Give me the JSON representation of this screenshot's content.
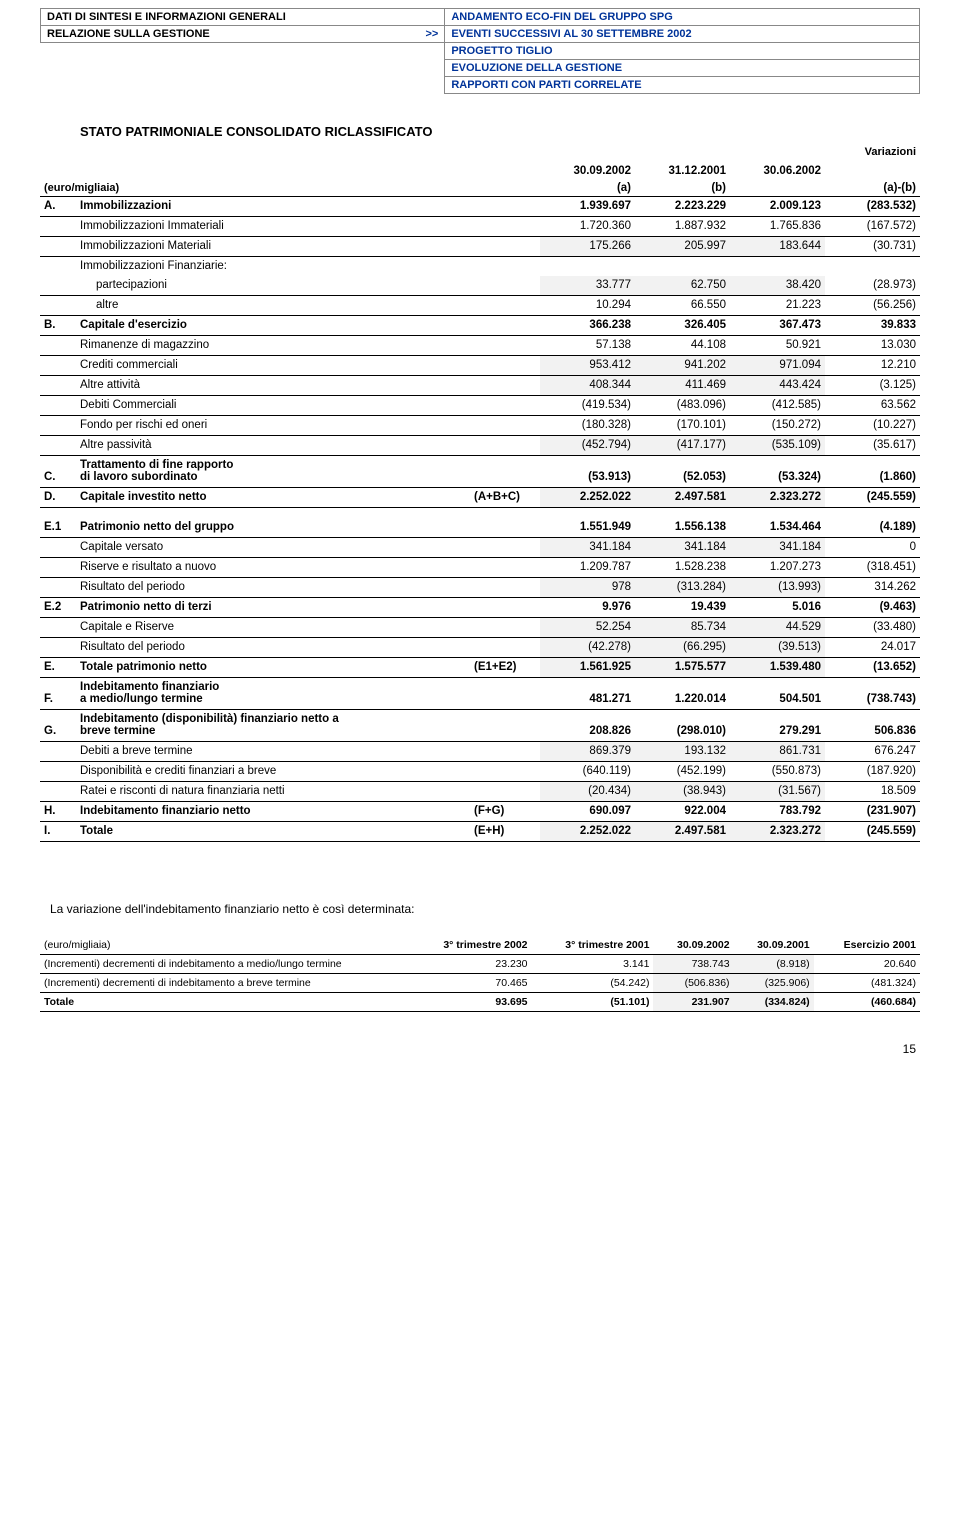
{
  "header": {
    "left1": "DATI DI SINTESI E INFORMAZIONI GENERALI",
    "left2": "RELAZIONE SULLA GESTIONE",
    "arrow": ">>",
    "right1": "ANDAMENTO ECO-FIN DEL GRUPPO SPG",
    "right2": "EVENTI SUCCESSIVI AL 30 SETTEMBRE 2002",
    "right3": "PROGETTO TIGLIO",
    "right4": "EVOLUZIONE DELLA GESTIONE",
    "right5": "RAPPORTI CON PARTI CORRELATE"
  },
  "title": "STATO PATRIMONIALE CONSOLIDATO  RICLASSIFICATO",
  "colheaders": {
    "variazioni": "Variazioni",
    "unit": "(euro/migliaia)",
    "c1": "30.09.2002",
    "c1b": "(a)",
    "c2": "31.12.2001",
    "c2b": "(b)",
    "c3": "30.06.2002",
    "c4": "(a)-(b)"
  },
  "rows": [
    {
      "letter": "A.",
      "desc": "Immobilizzazioni",
      "v": [
        "1.939.697",
        "2.223.229",
        "2.009.123",
        "(283.532)"
      ],
      "bold": true,
      "bottom": true
    },
    {
      "desc": "Immobilizzazioni Immateriali",
      "v": [
        "1.720.360",
        "1.887.932",
        "1.765.836",
        "(167.572)"
      ],
      "bottom": true
    },
    {
      "desc": "Immobilizzazioni Materiali",
      "v": [
        "175.266",
        "205.997",
        "183.644",
        "(30.731)"
      ],
      "bottom": true,
      "shaded": [
        0,
        1,
        2
      ]
    },
    {
      "desc": "Immobilizzazioni Finanziarie:"
    },
    {
      "desc": "partecipazioni",
      "indent": true,
      "v": [
        "33.777",
        "62.750",
        "38.420",
        "(28.973)"
      ],
      "bottom": true,
      "shaded": [
        0,
        1,
        2
      ]
    },
    {
      "desc": "altre",
      "indent": true,
      "v": [
        "10.294",
        "66.550",
        "21.223",
        "(56.256)"
      ],
      "bottom": true
    },
    {
      "letter": "B.",
      "desc": "Capitale d'esercizio",
      "v": [
        "366.238",
        "326.405",
        "367.473",
        "39.833"
      ],
      "bold": true,
      "bottom": true
    },
    {
      "desc": "Rimanenze di magazzino",
      "v": [
        "57.138",
        "44.108",
        "50.921",
        "13.030"
      ],
      "bottom": true
    },
    {
      "desc": "Crediti commerciali",
      "v": [
        "953.412",
        "941.202",
        "971.094",
        "12.210"
      ],
      "bottom": true,
      "shaded": [
        0,
        1,
        2
      ]
    },
    {
      "desc": "Altre attività",
      "v": [
        "408.344",
        "411.469",
        "443.424",
        "(3.125)"
      ],
      "bottom": true,
      "shaded": [
        0,
        1,
        2
      ]
    },
    {
      "desc": "Debiti Commerciali",
      "v": [
        "(419.534)",
        "(483.096)",
        "(412.585)",
        "63.562"
      ],
      "bottom": true
    },
    {
      "desc": "Fondo per rischi ed oneri",
      "v": [
        "(180.328)",
        "(170.101)",
        "(150.272)",
        "(10.227)"
      ],
      "bottom": true
    },
    {
      "desc": "Altre passività",
      "v": [
        "(452.794)",
        "(417.177)",
        "(535.109)",
        "(35.617)"
      ],
      "bottom": true,
      "shaded": [
        0,
        1,
        2
      ]
    },
    {
      "letter": "C.",
      "desc": "Trattamento di fine rapporto\ndi lavoro subordinato",
      "v": [
        "(53.913)",
        "(52.053)",
        "(53.324)",
        "(1.860)"
      ],
      "bold": true,
      "bottom": true
    },
    {
      "letter": "D.",
      "desc": "Capitale investito netto",
      "extra": "(A+B+C)",
      "v": [
        "2.252.022",
        "2.497.581",
        "2.323.272",
        "(245.559)"
      ],
      "bold": true,
      "bottom": true,
      "shaded": [
        0,
        1,
        2
      ]
    },
    {
      "spacer": true
    },
    {
      "letter": "E.1",
      "desc": "Patrimonio netto del gruppo",
      "v": [
        "1.551.949",
        "1.556.138",
        "1.534.464",
        "(4.189)"
      ],
      "bold": true,
      "bottom": true
    },
    {
      "desc": "Capitale versato",
      "v": [
        "341.184",
        "341.184",
        "341.184",
        "0"
      ],
      "bottom": true,
      "shaded": [
        0,
        1,
        2
      ]
    },
    {
      "desc": "Riserve e risultato a nuovo",
      "v": [
        "1.209.787",
        "1.528.238",
        "1.207.273",
        "(318.451)"
      ],
      "bottom": true
    },
    {
      "desc": "Risultato del periodo",
      "v": [
        "978",
        "(313.284)",
        "(13.993)",
        "314.262"
      ],
      "bottom": true,
      "shaded": [
        0,
        1,
        2
      ]
    },
    {
      "letter": "E.2",
      "desc": "Patrimonio netto di terzi",
      "v": [
        "9.976",
        "19.439",
        "5.016",
        "(9.463)"
      ],
      "bold": true,
      "bottom": true
    },
    {
      "desc": "Capitale e Riserve",
      "v": [
        "52.254",
        "85.734",
        "44.529",
        "(33.480)"
      ],
      "bottom": true,
      "shaded": [
        0,
        1,
        2
      ]
    },
    {
      "desc": "Risultato del periodo",
      "v": [
        "(42.278)",
        "(66.295)",
        "(39.513)",
        "24.017"
      ],
      "bottom": true,
      "shaded": [
        0,
        1,
        2
      ]
    },
    {
      "letter": "E.",
      "desc": "Totale patrimonio netto",
      "extra": "(E1+E2)",
      "v": [
        "1.561.925",
        "1.575.577",
        "1.539.480",
        "(13.652)"
      ],
      "bold": true,
      "bottom": true,
      "shaded": [
        0,
        1,
        2
      ]
    },
    {
      "letter": "F.",
      "desc": "Indebitamento finanziario\na medio/lungo termine",
      "v": [
        "481.271",
        "1.220.014",
        "504.501",
        "(738.743)"
      ],
      "bold": true,
      "bottom": true
    },
    {
      "letter": "G.",
      "desc": "Indebitamento (disponibilità) finanziario netto a\nbreve termine",
      "v": [
        "208.826",
        "(298.010)",
        "279.291",
        "506.836"
      ],
      "bold": true,
      "bottom": true
    },
    {
      "desc": "Debiti a breve termine",
      "v": [
        "869.379",
        "193.132",
        "861.731",
        "676.247"
      ],
      "bottom": true,
      "shaded": [
        0,
        1,
        2
      ]
    },
    {
      "desc": "Disponibilità e crediti finanziari a breve",
      "v": [
        "(640.119)",
        "(452.199)",
        "(550.873)",
        "(187.920)"
      ],
      "bottom": true
    },
    {
      "desc": "Ratei e risconti di natura finanziaria netti",
      "v": [
        "(20.434)",
        "(38.943)",
        "(31.567)",
        "18.509"
      ],
      "bottom": true,
      "shaded": [
        0,
        1,
        2
      ]
    },
    {
      "letter": "H.",
      "desc": "Indebitamento finanziario netto",
      "extra": "(F+G)",
      "v": [
        "690.097",
        "922.004",
        "783.792",
        "(231.907)"
      ],
      "bold": true,
      "bottom": true
    },
    {
      "letter": "I.",
      "desc": "Totale",
      "extra": "(E+H)",
      "v": [
        "2.252.022",
        "2.497.581",
        "2.323.272",
        "(245.559)"
      ],
      "bold": true,
      "bottom": true,
      "shaded": [
        0,
        1,
        2
      ]
    }
  ],
  "footnote": "La variazione dell'indebitamento finanziario netto è così determinata:",
  "smalltable": {
    "unit": "(euro/migliaia)",
    "headers": [
      "3° trimestre 2002",
      "3° trimestre 2001",
      "30.09.2002",
      "30.09.2001",
      "Esercizio 2001"
    ],
    "rows": [
      {
        "desc": "(Incrementi) decrementi di indebitamento a medio/lungo termine",
        "v": [
          "23.230",
          "3.141",
          "738.743",
          "(8.918)",
          "20.640"
        ],
        "shaded": [
          2,
          3
        ]
      },
      {
        "desc": "(Incrementi) decrementi di indebitamento a breve  termine",
        "v": [
          "70.465",
          "(54.242)",
          "(506.836)",
          "(325.906)",
          "(481.324)"
        ],
        "shaded": [
          2,
          3
        ]
      },
      {
        "desc": "Totale",
        "v": [
          "93.695",
          "(51.101)",
          "231.907",
          "(334.824)",
          "(460.684)"
        ],
        "bold": true,
        "shaded": [
          2,
          3
        ]
      }
    ]
  },
  "page": "15",
  "colors": {
    "blue": "#003399",
    "shade": "#f2f2f2",
    "border": "#000000"
  }
}
